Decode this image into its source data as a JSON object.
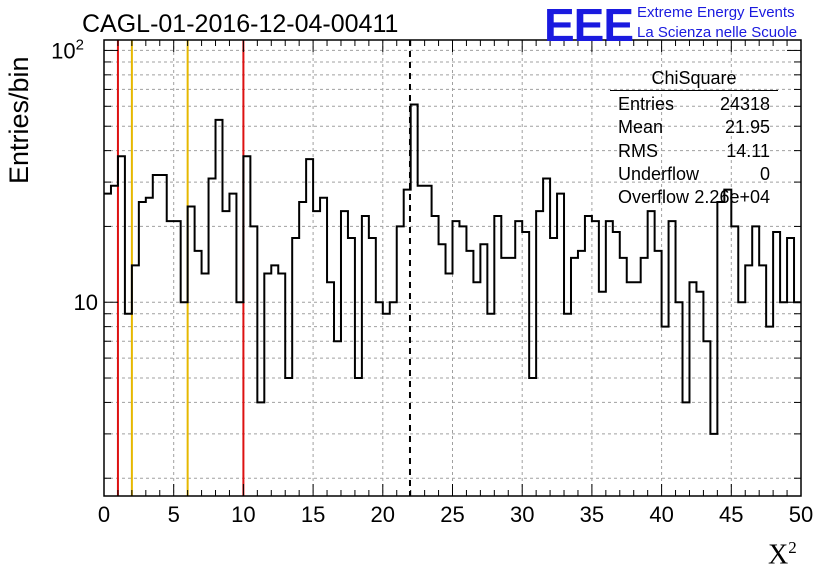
{
  "title": "CAGL-01-2016-12-04-00411",
  "logo": {
    "text": "EEE",
    "line1": "Extreme Energy Events",
    "line2": "La Scienza nelle Scuole",
    "color": "#1a1adf"
  },
  "axes": {
    "ylabel": "Entries/bin",
    "xlabel": "X",
    "xlabel_sup": "2"
  },
  "stats": {
    "title": "ChiSquare",
    "rows": [
      {
        "label": "Entries",
        "value": "24318"
      },
      {
        "label": "Mean",
        "value": "21.95"
      },
      {
        "label": "RMS",
        "value": "14.11"
      },
      {
        "label": "Underflow",
        "value": "0"
      },
      {
        "label": "Overflow",
        "value": "2.26e+04"
      }
    ]
  },
  "chart_data": {
    "type": "histogram",
    "x_range": [
      0,
      50
    ],
    "y_range": [
      1.7,
      110
    ],
    "y_scale": "log",
    "bin_width": 0.5,
    "x_tick_labels": [
      "0",
      "5",
      "10",
      "15",
      "20",
      "25",
      "30",
      "35",
      "40",
      "45",
      "50"
    ],
    "y_tick_labels": [
      {
        "value": 10,
        "label": "10"
      },
      {
        "value": 100,
        "label": "10",
        "sup": "2"
      }
    ],
    "grid": true,
    "values": [
      27,
      29,
      38,
      9,
      14,
      25,
      26,
      32,
      32,
      21,
      21,
      10,
      24,
      16,
      13,
      31,
      53,
      23,
      27,
      10,
      38,
      20,
      4,
      13,
      14,
      13,
      5,
      18,
      25,
      37,
      23,
      26,
      12,
      7,
      23,
      18,
      5,
      22,
      18,
      10,
      9,
      10,
      20,
      28,
      61,
      29,
      29,
      22,
      17,
      13,
      21,
      20,
      16,
      12,
      17,
      9,
      22,
      15,
      15,
      21,
      19,
      5,
      23,
      31,
      18,
      27,
      9,
      15,
      16,
      22,
      21,
      11,
      21,
      19,
      15,
      12,
      12,
      15,
      23,
      16,
      8,
      21,
      10,
      4,
      12,
      11,
      7,
      3,
      25,
      28,
      20,
      10,
      14,
      20,
      14,
      8,
      19,
      10,
      18,
      10
    ],
    "reference_lines": [
      {
        "x": 1,
        "color": "#dd1111",
        "style": "solid"
      },
      {
        "x": 2,
        "color": "#e6b800",
        "style": "solid"
      },
      {
        "x": 6,
        "color": "#e6b800",
        "style": "solid"
      },
      {
        "x": 10,
        "color": "#dd1111",
        "style": "solid"
      },
      {
        "x": 21.95,
        "color": "#000000",
        "style": "dashed"
      }
    ]
  }
}
